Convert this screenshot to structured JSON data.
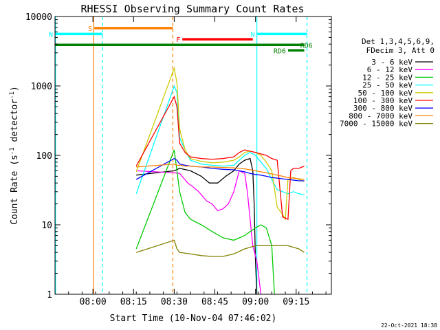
{
  "chart_data": {
    "type": "line",
    "title": "RHESSI Observing Summary Count Rates",
    "xlabel": "Start Time (10-Nov-04 07:46:02)",
    "ylabel": "Count Rate (s-1 detector-1)",
    "ylabel_parts": {
      "pre": "Count Rate (s",
      "sup1": "-1",
      "mid": " detector",
      "sup2": "-1",
      "post": ")"
    },
    "yscale": "log",
    "ylim": [
      1,
      10000
    ],
    "xlim_minutes": [
      0,
      102
    ],
    "x_ticks": [
      {
        "minute": 14,
        "label": "08:00"
      },
      {
        "minute": 29,
        "label": "08:15"
      },
      {
        "minute": 44,
        "label": "08:30"
      },
      {
        "minute": 59,
        "label": "08:45"
      },
      {
        "minute": 74,
        "label": "09:00"
      },
      {
        "minute": 89,
        "label": "09:15"
      }
    ],
    "y_ticks": [
      {
        "value": 1,
        "label": "1"
      },
      {
        "value": 10,
        "label": "10"
      },
      {
        "value": 100,
        "label": "100"
      },
      {
        "value": 1000,
        "label": "1000"
      },
      {
        "value": 10000,
        "label": "10000"
      }
    ],
    "legend_header": [
      "Det 1,3,4,5,6,9,",
      "FDecim 3, Att 0"
    ],
    "series": [
      {
        "name": "3 - 6 keV",
        "color": "#000000",
        "points": [
          [
            30,
            52
          ],
          [
            44,
            60
          ],
          [
            46,
            65
          ],
          [
            50,
            60
          ],
          [
            54,
            50
          ],
          [
            57,
            40
          ],
          [
            60,
            40
          ],
          [
            63,
            50
          ],
          [
            66,
            60
          ],
          [
            68,
            75
          ],
          [
            70,
            85
          ],
          [
            72,
            90
          ],
          [
            73,
            60
          ],
          [
            73.5,
            20
          ],
          [
            74,
            3
          ],
          [
            74.5,
            1
          ]
        ]
      },
      {
        "name": "6 - 12 keV",
        "color": "#ff00ff",
        "points": [
          [
            30,
            60
          ],
          [
            44,
            56
          ],
          [
            46,
            55
          ],
          [
            49,
            40
          ],
          [
            51,
            35
          ],
          [
            53,
            30
          ],
          [
            56,
            22
          ],
          [
            58,
            20
          ],
          [
            60,
            16
          ],
          [
            62,
            17
          ],
          [
            64,
            20
          ],
          [
            66,
            30
          ],
          [
            68,
            60
          ],
          [
            70,
            55
          ],
          [
            71,
            30
          ],
          [
            72,
            12
          ],
          [
            73,
            5
          ],
          [
            74.5,
            3
          ],
          [
            76,
            1
          ]
        ]
      },
      {
        "name": "12 - 25 keV",
        "color": "#00cc00",
        "points": [
          [
            30,
            4.5
          ],
          [
            44,
            120
          ],
          [
            46,
            30
          ],
          [
            48,
            15
          ],
          [
            50,
            12
          ],
          [
            54,
            10
          ],
          [
            58,
            8
          ],
          [
            62,
            6.5
          ],
          [
            66,
            6
          ],
          [
            70,
            7
          ],
          [
            72,
            8
          ],
          [
            74,
            9
          ],
          [
            76,
            10
          ],
          [
            78,
            9
          ],
          [
            80,
            5
          ],
          [
            81,
            1
          ]
        ]
      },
      {
        "name": "25 - 50 keV",
        "color": "#00ffff",
        "points": [
          [
            30,
            28
          ],
          [
            44,
            1000
          ],
          [
            45,
            800
          ],
          [
            46,
            180
          ],
          [
            48,
            120
          ],
          [
            50,
            85
          ],
          [
            54,
            75
          ],
          [
            58,
            72
          ],
          [
            62,
            70
          ],
          [
            66,
            72
          ],
          [
            68,
            85
          ],
          [
            70,
            100
          ],
          [
            72,
            110
          ],
          [
            74,
            100
          ],
          [
            76,
            80
          ],
          [
            78,
            65
          ],
          [
            80,
            45
          ],
          [
            82,
            32
          ],
          [
            84,
            30
          ],
          [
            86,
            28
          ],
          [
            88,
            30
          ],
          [
            90,
            28
          ],
          [
            92,
            27
          ]
        ]
      },
      {
        "name": "50 - 100 keV",
        "color": "#cccc00",
        "points": [
          [
            30,
            58
          ],
          [
            44,
            1800
          ],
          [
            45,
            1100
          ],
          [
            46,
            240
          ],
          [
            48,
            120
          ],
          [
            50,
            90
          ],
          [
            54,
            82
          ],
          [
            58,
            78
          ],
          [
            62,
            80
          ],
          [
            66,
            85
          ],
          [
            68,
            95
          ],
          [
            70,
            110
          ],
          [
            72,
            115
          ],
          [
            74,
            110
          ],
          [
            76,
            100
          ],
          [
            78,
            80
          ],
          [
            80,
            60
          ],
          [
            82,
            18
          ],
          [
            84,
            14
          ],
          [
            85,
            12
          ],
          [
            86,
            45
          ],
          [
            88,
            48
          ],
          [
            90,
            45
          ],
          [
            92,
            42
          ]
        ]
      },
      {
        "name": "100 - 300 keV",
        "color": "#ff0000",
        "points": [
          [
            30,
            70
          ],
          [
            44,
            700
          ],
          [
            45,
            500
          ],
          [
            46,
            150
          ],
          [
            48,
            110
          ],
          [
            50,
            95
          ],
          [
            54,
            90
          ],
          [
            58,
            88
          ],
          [
            62,
            90
          ],
          [
            66,
            95
          ],
          [
            68,
            110
          ],
          [
            70,
            120
          ],
          [
            72,
            115
          ],
          [
            74,
            110
          ],
          [
            76,
            105
          ],
          [
            78,
            100
          ],
          [
            80,
            90
          ],
          [
            82,
            85
          ],
          [
            84,
            13
          ],
          [
            86,
            12
          ],
          [
            87,
            60
          ],
          [
            88,
            65
          ],
          [
            90,
            65
          ],
          [
            92,
            70
          ]
        ]
      },
      {
        "name": "300 - 800 keV",
        "color": "#0000ff",
        "points": [
          [
            30,
            45
          ],
          [
            44,
            90
          ],
          [
            45,
            85
          ],
          [
            46,
            75
          ],
          [
            48,
            72
          ],
          [
            50,
            70
          ],
          [
            54,
            68
          ],
          [
            58,
            65
          ],
          [
            62,
            63
          ],
          [
            66,
            62
          ],
          [
            68,
            60
          ],
          [
            70,
            58
          ],
          [
            72,
            55
          ],
          [
            74,
            53
          ],
          [
            76,
            52
          ],
          [
            78,
            50
          ],
          [
            80,
            48
          ],
          [
            82,
            47
          ],
          [
            84,
            46
          ],
          [
            86,
            45
          ],
          [
            88,
            44
          ],
          [
            90,
            43
          ],
          [
            92,
            43
          ]
        ]
      },
      {
        "name": "800 - 7000 keV",
        "color": "#ff8000",
        "points": [
          [
            30,
            68
          ],
          [
            44,
            75
          ],
          [
            45,
            72
          ],
          [
            46,
            72
          ],
          [
            48,
            70
          ],
          [
            50,
            70
          ],
          [
            54,
            68
          ],
          [
            58,
            68
          ],
          [
            62,
            67
          ],
          [
            66,
            66
          ],
          [
            68,
            65
          ],
          [
            70,
            64
          ],
          [
            72,
            62
          ],
          [
            74,
            60
          ],
          [
            76,
            58
          ],
          [
            78,
            56
          ],
          [
            80,
            54
          ],
          [
            82,
            52
          ],
          [
            84,
            50
          ],
          [
            86,
            48
          ],
          [
            88,
            47
          ],
          [
            90,
            46
          ],
          [
            92,
            45
          ]
        ]
      },
      {
        "name": "7000 - 15000 keV",
        "color": "#808000",
        "points": [
          [
            30,
            4
          ],
          [
            44,
            6
          ],
          [
            45,
            4.5
          ],
          [
            46,
            4
          ],
          [
            50,
            3.8
          ],
          [
            54,
            3.6
          ],
          [
            58,
            3.5
          ],
          [
            62,
            3.5
          ],
          [
            66,
            3.8
          ],
          [
            70,
            4.5
          ],
          [
            74,
            5
          ],
          [
            78,
            5
          ],
          [
            82,
            5
          ],
          [
            86,
            5
          ],
          [
            90,
            4.5
          ],
          [
            92,
            4
          ]
        ]
      }
    ],
    "bands": [
      {
        "label": "S",
        "color": "#ff8000",
        "start": 14.5,
        "end": 43.5,
        "value": 6800
      },
      {
        "label": "N",
        "color": "#00ffff",
        "start": 0,
        "end": 17.5,
        "value": 5600
      },
      {
        "label": "N",
        "color": "#00ffff",
        "start": 74.5,
        "end": 93,
        "value": 5600
      },
      {
        "label": "F",
        "color": "#ff0000",
        "start": 47,
        "end": 73,
        "value": 4700
      },
      {
        "label": "",
        "color": "#008000",
        "start": 0,
        "end": 92,
        "value": 3900
      },
      {
        "label": "RD6",
        "color": "#008000",
        "start": 86,
        "end": 92,
        "value": 3250
      }
    ],
    "vlines": [
      {
        "minute": 14.3,
        "color": "#ff8000",
        "style": "solid"
      },
      {
        "minute": 17.5,
        "color": "#00ffff",
        "style": "dashed"
      },
      {
        "minute": 43.5,
        "color": "#ff8000",
        "style": "dashed"
      },
      {
        "minute": 74.5,
        "color": "#00ffff",
        "style": "solid"
      },
      {
        "minute": 93,
        "color": "#00ffff",
        "style": "dashed"
      },
      {
        "minute": 0.2,
        "color": "#00ffff",
        "style": "solid"
      }
    ],
    "band_extra_label": {
      "label": "RD6",
      "color": "#008000",
      "minute": 89,
      "value": 3900
    },
    "footer": "22-Oct-2021 18:38"
  }
}
